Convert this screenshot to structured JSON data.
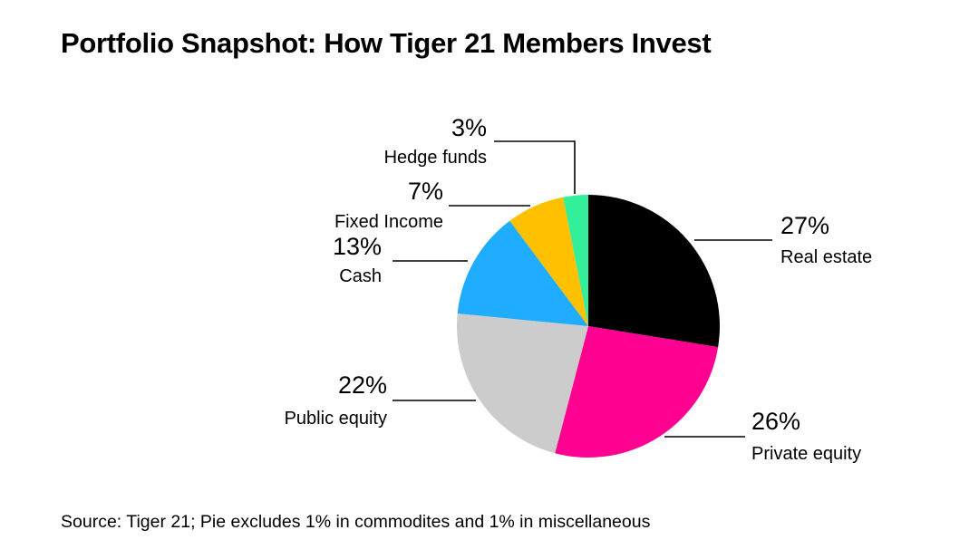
{
  "title": "Portfolio Snapshot: How Tiger 21 Members Invest",
  "source": "Source: Tiger 21; Pie excludes 1% in commodites and 1% in miscellaneous",
  "chart_data": {
    "type": "pie",
    "slices": [
      {
        "label": "Real estate",
        "value": 27,
        "value_label": "27%",
        "color": "#000000"
      },
      {
        "label": "Private equity",
        "value": 26,
        "value_label": "26%",
        "color": "#ff0090"
      },
      {
        "label": "Public equity",
        "value": 22,
        "value_label": "22%",
        "color": "#cccccc"
      },
      {
        "label": "Cash",
        "value": 13,
        "value_label": "13%",
        "color": "#20acff"
      },
      {
        "label": "Fixed Income",
        "value": 7,
        "value_label": "7%",
        "color": "#ffc000"
      },
      {
        "label": "Hedge funds",
        "value": 3,
        "value_label": "3%",
        "color": "#33ef9a"
      }
    ],
    "start_angle": "12 o'clock, clockwise",
    "legend": "none (direct labels)"
  }
}
